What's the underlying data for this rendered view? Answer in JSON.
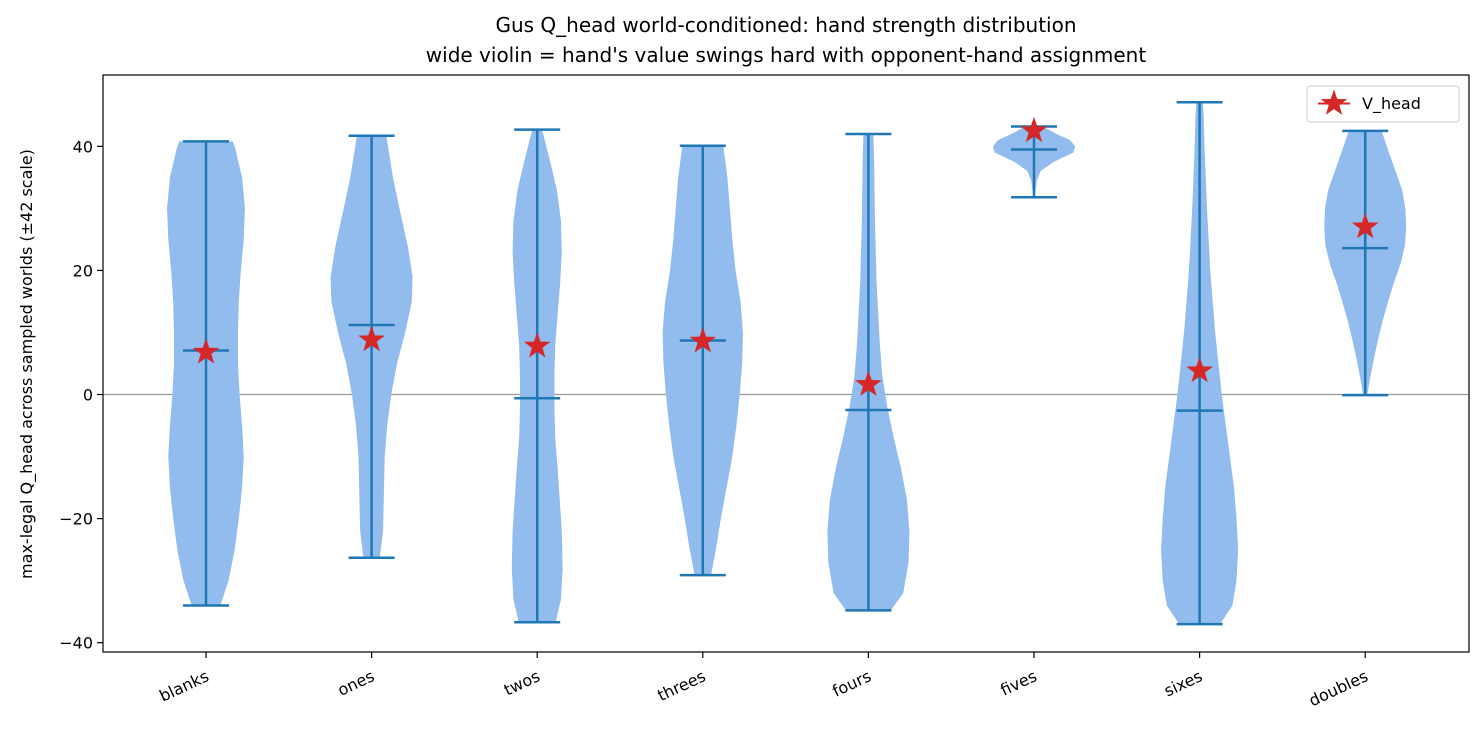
{
  "chart_data": {
    "type": "violin",
    "title": "Gus Q_head world-conditioned: hand strength distribution",
    "subtitle": "wide violin = hand's value swings hard with opponent-hand assignment",
    "ylabel": "max-legal Q_head across sampled worlds (±42 scale)",
    "xlabel": "",
    "ylim": [
      -41.5,
      51.5
    ],
    "yticks": [
      -40,
      -20,
      0,
      20,
      40
    ],
    "grid": false,
    "reference_line": 0,
    "legend": {
      "position": "top-right",
      "label": "V_head"
    },
    "colors": {
      "violin_fill": "#93bcee",
      "whisker": "#1f77b4",
      "marker": "#d62728",
      "reference": "#999999"
    },
    "categories": [
      "blanks",
      "ones",
      "twos",
      "threes",
      "fours",
      "fives",
      "sixes",
      "doubles"
    ],
    "series": [
      {
        "category": "blanks",
        "min": -34,
        "max": 40.8,
        "median": 7.1,
        "v_head": 6.8,
        "density": [
          [
            -34,
            0.35
          ],
          [
            -30,
            0.55
          ],
          [
            -25,
            0.7
          ],
          [
            -20,
            0.8
          ],
          [
            -15,
            0.88
          ],
          [
            -10,
            0.92
          ],
          [
            -5,
            0.88
          ],
          [
            0,
            0.82
          ],
          [
            5,
            0.78
          ],
          [
            10,
            0.78
          ],
          [
            15,
            0.8
          ],
          [
            20,
            0.85
          ],
          [
            25,
            0.92
          ],
          [
            30,
            0.95
          ],
          [
            35,
            0.88
          ],
          [
            40,
            0.7
          ],
          [
            40.8,
            0.65
          ]
        ]
      },
      {
        "category": "ones",
        "min": -26.3,
        "max": 41.7,
        "median": 11.2,
        "v_head": 8.8,
        "density": [
          [
            -26.3,
            0.2
          ],
          [
            -22,
            0.28
          ],
          [
            -16,
            0.3
          ],
          [
            -10,
            0.32
          ],
          [
            -5,
            0.38
          ],
          [
            0,
            0.48
          ],
          [
            5,
            0.62
          ],
          [
            10,
            0.82
          ],
          [
            15,
            0.98
          ],
          [
            19,
            1.0
          ],
          [
            24,
            0.88
          ],
          [
            30,
            0.68
          ],
          [
            35,
            0.52
          ],
          [
            40,
            0.4
          ],
          [
            41.7,
            0.36
          ]
        ]
      },
      {
        "category": "twos",
        "min": -36.7,
        "max": 42.7,
        "median": -0.6,
        "v_head": 7.8,
        "density": [
          [
            -36.7,
            0.45
          ],
          [
            -33,
            0.58
          ],
          [
            -28,
            0.62
          ],
          [
            -22,
            0.6
          ],
          [
            -17,
            0.55
          ],
          [
            -12,
            0.5
          ],
          [
            -7,
            0.44
          ],
          [
            -2,
            0.42
          ],
          [
            3,
            0.42
          ],
          [
            8,
            0.44
          ],
          [
            13,
            0.5
          ],
          [
            18,
            0.56
          ],
          [
            23,
            0.6
          ],
          [
            28,
            0.58
          ],
          [
            33,
            0.48
          ],
          [
            38,
            0.3
          ],
          [
            42.7,
            0.12
          ]
        ]
      },
      {
        "category": "threes",
        "min": -29.1,
        "max": 40.1,
        "median": 8.7,
        "v_head": 8.6,
        "density": [
          [
            -29.1,
            0.2
          ],
          [
            -25,
            0.32
          ],
          [
            -20,
            0.44
          ],
          [
            -15,
            0.58
          ],
          [
            -10,
            0.72
          ],
          [
            -5,
            0.82
          ],
          [
            0,
            0.9
          ],
          [
            5,
            0.96
          ],
          [
            10,
            0.98
          ],
          [
            15,
            0.92
          ],
          [
            20,
            0.8
          ],
          [
            25,
            0.72
          ],
          [
            30,
            0.66
          ],
          [
            35,
            0.6
          ],
          [
            40.1,
            0.5
          ]
        ]
      },
      {
        "category": "fours",
        "min": -34.8,
        "max": 42,
        "median": -2.5,
        "v_head": 1.6,
        "density": [
          [
            -34.8,
            0.55
          ],
          [
            -32,
            0.85
          ],
          [
            -27,
            0.98
          ],
          [
            -22,
            1.0
          ],
          [
            -17,
            0.94
          ],
          [
            -12,
            0.8
          ],
          [
            -7,
            0.62
          ],
          [
            -2,
            0.46
          ],
          [
            3,
            0.34
          ],
          [
            8,
            0.28
          ],
          [
            13,
            0.24
          ],
          [
            18,
            0.2
          ],
          [
            23,
            0.18
          ],
          [
            28,
            0.16
          ],
          [
            33,
            0.15
          ],
          [
            38,
            0.14
          ],
          [
            42,
            0.12
          ]
        ]
      },
      {
        "category": "fives",
        "min": 31.8,
        "max": 43.2,
        "median": 39.5,
        "v_head": 42.5,
        "density": [
          [
            31.8,
            0.02
          ],
          [
            33,
            0.04
          ],
          [
            34.5,
            0.07
          ],
          [
            36,
            0.16
          ],
          [
            37.5,
            0.48
          ],
          [
            39,
            0.96
          ],
          [
            40,
            1.0
          ],
          [
            41,
            0.88
          ],
          [
            42,
            0.55
          ],
          [
            43.2,
            0.22
          ]
        ]
      },
      {
        "category": "sixes",
        "min": -37,
        "max": 47.1,
        "median": -2.6,
        "v_head": 3.8,
        "density": [
          [
            -37,
            0.5
          ],
          [
            -34,
            0.8
          ],
          [
            -30,
            0.9
          ],
          [
            -25,
            0.94
          ],
          [
            -20,
            0.9
          ],
          [
            -15,
            0.84
          ],
          [
            -10,
            0.74
          ],
          [
            -5,
            0.64
          ],
          [
            0,
            0.54
          ],
          [
            5,
            0.46
          ],
          [
            10,
            0.38
          ],
          [
            15,
            0.32
          ],
          [
            20,
            0.26
          ],
          [
            25,
            0.22
          ],
          [
            30,
            0.18
          ],
          [
            35,
            0.15
          ],
          [
            40,
            0.12
          ],
          [
            45,
            0.1
          ],
          [
            47.1,
            0.08
          ]
        ]
      },
      {
        "category": "doubles",
        "min": -0.1,
        "max": 42.5,
        "median": 23.6,
        "v_head": 27,
        "density": [
          [
            -0.1,
            0.05
          ],
          [
            3,
            0.13
          ],
          [
            6,
            0.22
          ],
          [
            9,
            0.32
          ],
          [
            12,
            0.43
          ],
          [
            15,
            0.56
          ],
          [
            18,
            0.7
          ],
          [
            21,
            0.86
          ],
          [
            24,
            0.97
          ],
          [
            27,
            1.0
          ],
          [
            30,
            0.98
          ],
          [
            33,
            0.9
          ],
          [
            36,
            0.74
          ],
          [
            39,
            0.58
          ],
          [
            42.5,
            0.4
          ]
        ]
      }
    ]
  }
}
